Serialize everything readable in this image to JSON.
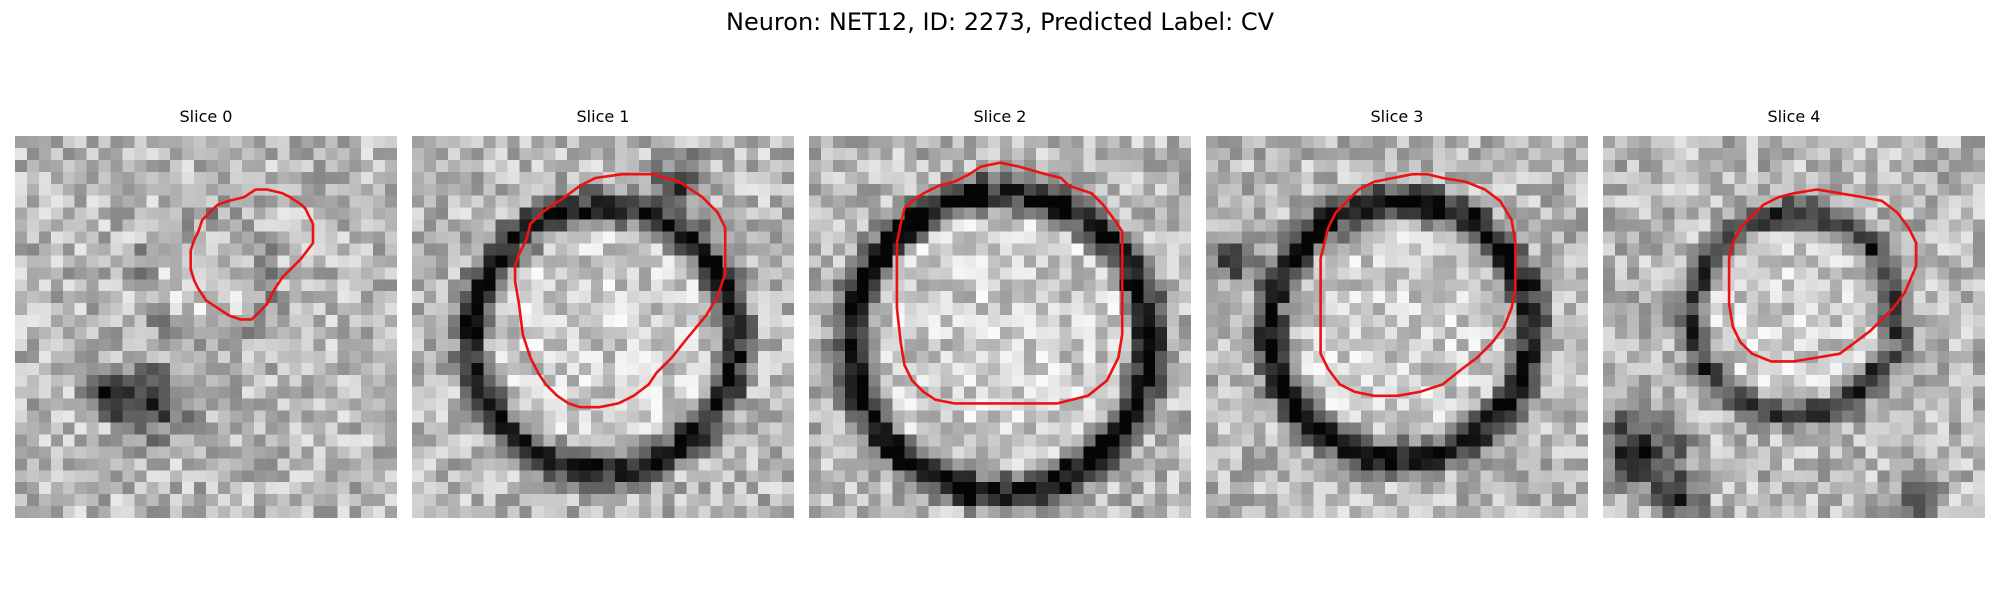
{
  "figure": {
    "title": "Neuron: NET12, ID: 2273, Predicted Label: CV"
  },
  "colors": {
    "contour": "#ee1111",
    "background": "#ffffff"
  },
  "panels": [
    {
      "title": "Slice 0"
    },
    {
      "title": "Slice 1"
    },
    {
      "title": "Slice 2"
    },
    {
      "title": "Slice 3"
    },
    {
      "title": "Slice 4"
    }
  ]
}
